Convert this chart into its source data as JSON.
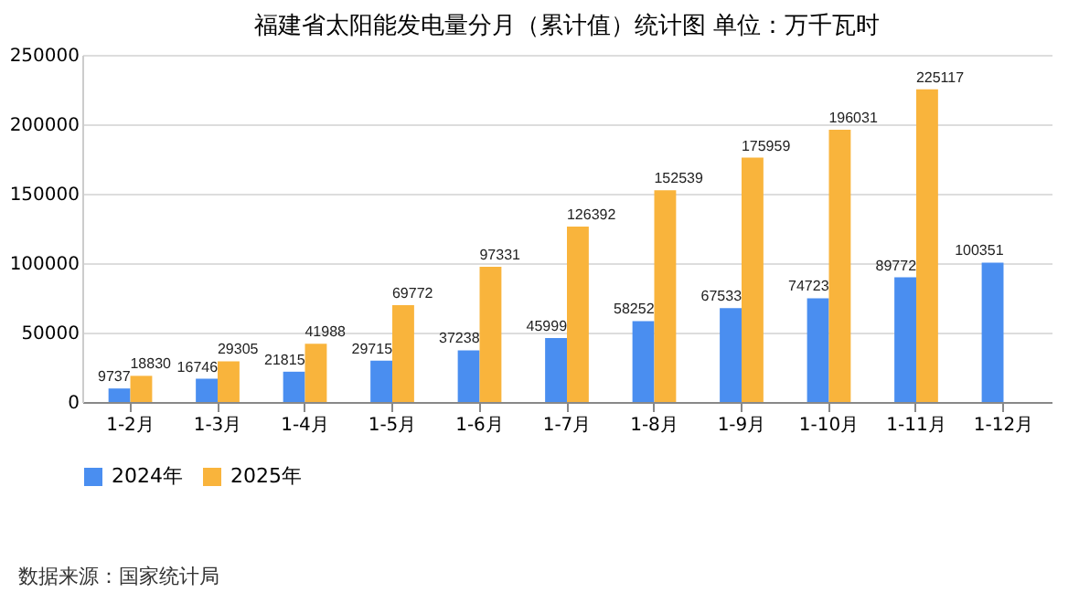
{
  "chart_data": {
    "type": "bar",
    "title": "福建省太阳能发电量分月（累计值）统计图 单位：万千瓦时",
    "categories": [
      "1-2月",
      "1-3月",
      "1-4月",
      "1-5月",
      "1-6月",
      "1-7月",
      "1-8月",
      "1-9月",
      "1-10月",
      "1-11月",
      "1-12月"
    ],
    "series": [
      {
        "name": "2024年",
        "color": "#4a8ef0",
        "values": [
          9737,
          16746,
          21815,
          29715,
          37238,
          45999,
          58252,
          67533,
          74723,
          89772,
          100351
        ]
      },
      {
        "name": "2025年",
        "color": "#f9b43c",
        "values": [
          18830,
          29305,
          41988,
          69772,
          97331,
          126392,
          152539,
          175959,
          196031,
          225117,
          null
        ]
      }
    ],
    "ylim": [
      0,
      250000
    ],
    "yticks": [
      0,
      50000,
      100000,
      150000,
      200000,
      250000
    ],
    "grid": "y",
    "legend": "bottom",
    "data_labels": true,
    "annotations": [
      "数据来源：国家统计局"
    ]
  }
}
